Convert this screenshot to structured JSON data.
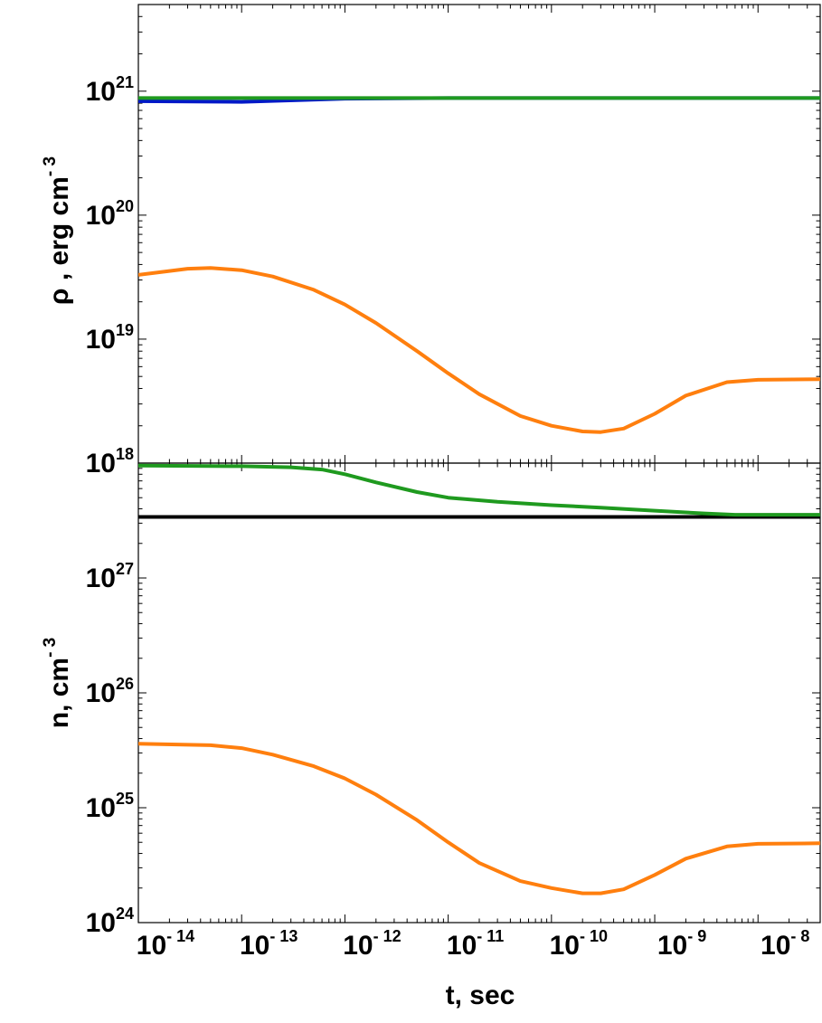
{
  "chart_data": [
    {
      "type": "line",
      "panel": "top",
      "title": "",
      "xlabel": "t, sec",
      "ylabel": "ρ , erg cm",
      "ylabel_exponent": "- 3",
      "xscale": "log",
      "yscale": "log",
      "xlim": [
        1e-14,
        4e-08
      ],
      "ylim": [
        1e+18,
        5e+21
      ],
      "grid": false,
      "ytick_values": [
        1e+18,
        1e+19,
        1e+20,
        1e+21
      ],
      "ytick_labels": [
        {
          "base": "10",
          "exp": "18"
        },
        {
          "base": "10",
          "exp": "19"
        },
        {
          "base": "10",
          "exp": "20"
        },
        {
          "base": "10",
          "exp": "21"
        }
      ],
      "series": [
        {
          "color": "#0018c8",
          "x": [
            1e-14,
            1e-13,
            1e-12,
            1e-11,
            1e-10,
            1e-09,
            1e-08,
            4e-08
          ],
          "y": [
            8.3e+20,
            8.2e+20,
            8.7e+20,
            8.8e+20,
            8.8e+20,
            8.8e+20,
            8.8e+20,
            8.8e+20
          ]
        },
        {
          "color": "#1f9a1f",
          "x": [
            1e-14,
            1e-13,
            1e-12,
            1e-11,
            1e-10,
            1e-09,
            1e-08,
            4e-08
          ],
          "y": [
            8.8e+20,
            8.8e+20,
            8.8e+20,
            8.8e+20,
            8.8e+20,
            8.8e+20,
            8.8e+20,
            8.8e+20
          ]
        },
        {
          "color": "#ff7f0e",
          "x": [
            1e-14,
            3e-14,
            5e-14,
            1e-13,
            2e-13,
            5e-13,
            1e-12,
            2e-12,
            5e-12,
            1e-11,
            2e-11,
            5e-11,
            1e-10,
            2e-10,
            3e-10,
            5e-10,
            1e-09,
            2e-09,
            5e-09,
            1e-08,
            4e-08
          ],
          "y": [
            3.3e+19,
            3.7e+19,
            3.75e+19,
            3.6e+19,
            3.2e+19,
            2.5e+19,
            1.9e+19,
            1.35e+19,
            8e+18,
            5.3e+18,
            3.6e+18,
            2.4e+18,
            2e+18,
            1.8e+18,
            1.78e+18,
            1.9e+18,
            2.5e+18,
            3.5e+18,
            4.5e+18,
            4.7e+18,
            4.75e+18
          ]
        }
      ]
    },
    {
      "type": "line",
      "panel": "bottom",
      "title": "",
      "xlabel": "t, sec",
      "ylabel": "n, cm",
      "ylabel_exponent": "- 3",
      "xscale": "log",
      "yscale": "log",
      "xlim": [
        1e-14,
        4e-08
      ],
      "ylim": [
        1e+24,
        1e+28
      ],
      "grid": false,
      "ytick_values": [
        1e+24,
        1e+25,
        1e+26,
        1e+27
      ],
      "ytick_labels": [
        {
          "base": "10",
          "exp": "24"
        },
        {
          "base": "10",
          "exp": "25"
        },
        {
          "base": "10",
          "exp": "26"
        },
        {
          "base": "10",
          "exp": "27"
        }
      ],
      "xtick_values": [
        1e-14,
        1e-13,
        1e-12,
        1e-11,
        1e-10,
        1e-09,
        1e-08
      ],
      "xtick_labels": [
        {
          "base": "10",
          "exp": "- 14"
        },
        {
          "base": "10",
          "exp": "- 13"
        },
        {
          "base": "10",
          "exp": "- 12"
        },
        {
          "base": "10",
          "exp": "- 11"
        },
        {
          "base": "10",
          "exp": "- 10"
        },
        {
          "base": "10",
          "exp": "- 9"
        },
        {
          "base": "10",
          "exp": "- 8"
        }
      ],
      "series": [
        {
          "color": "#000000",
          "x": [
            1e-14,
            4e-08
          ],
          "y": [
            3.4e+27,
            3.4e+27
          ]
        },
        {
          "color": "#1f9a1f",
          "x": [
            1e-14,
            1e-13,
            3e-13,
            6e-13,
            1e-12,
            2e-12,
            5e-12,
            1e-11,
            3e-11,
            1e-10,
            3e-10,
            1e-09,
            3e-09,
            6e-09,
            1e-08,
            4e-08
          ],
          "y": [
            9.5e+27,
            9.4e+27,
            9.2e+27,
            8.8e+27,
            8e+27,
            6.8e+27,
            5.6e+27,
            5e+27,
            4.6e+27,
            4.3e+27,
            4.1e+27,
            3.85e+27,
            3.65e+27,
            3.55e+27,
            3.55e+27,
            3.55e+27
          ]
        },
        {
          "color": "#ff7f0e",
          "x": [
            1e-14,
            5e-14,
            1e-13,
            2e-13,
            5e-13,
            1e-12,
            2e-12,
            5e-12,
            1e-11,
            2e-11,
            5e-11,
            1e-10,
            2e-10,
            3e-10,
            5e-10,
            1e-09,
            2e-09,
            5e-09,
            1e-08,
            4e-08
          ],
          "y": [
            3.6e+25,
            3.5e+25,
            3.3e+25,
            2.9e+25,
            2.3e+25,
            1.8e+25,
            1.3e+25,
            7.8e+24,
            5e+24,
            3.3e+24,
            2.3e+24,
            2e+24,
            1.8e+24,
            1.8e+24,
            1.95e+24,
            2.6e+24,
            3.6e+24,
            4.6e+24,
            4.85e+24,
            4.9e+24
          ]
        }
      ]
    }
  ]
}
